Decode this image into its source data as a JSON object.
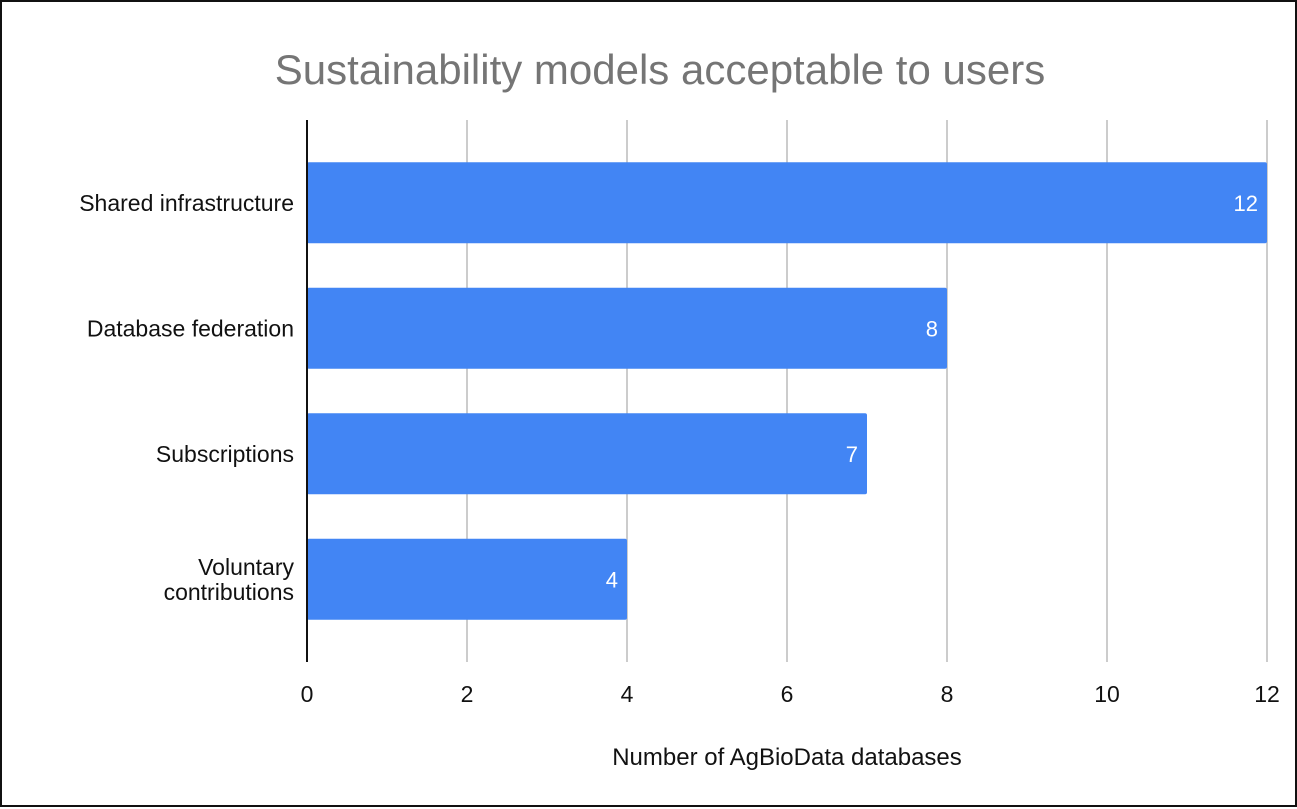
{
  "chart_data": {
    "type": "bar",
    "orientation": "horizontal",
    "title": "Sustainability models acceptable to users",
    "xlabel": "Number of AgBioData databases",
    "ylabel": "",
    "categories": [
      [
        "Shared infrastructure"
      ],
      [
        "Database federation"
      ],
      [
        "Subscriptions"
      ],
      [
        "Voluntary",
        "contributions"
      ]
    ],
    "values": [
      12,
      8,
      7,
      4
    ],
    "xlim": [
      0,
      12
    ],
    "xticks": [
      0,
      2,
      4,
      6,
      8,
      10,
      12
    ],
    "grid": true,
    "data_labels": true,
    "colors": {
      "bar": "#4285F4",
      "grid": "#cccccc",
      "axis": "#111111",
      "title": "#757575",
      "data_label": "#ffffff",
      "text": "#111111"
    }
  }
}
